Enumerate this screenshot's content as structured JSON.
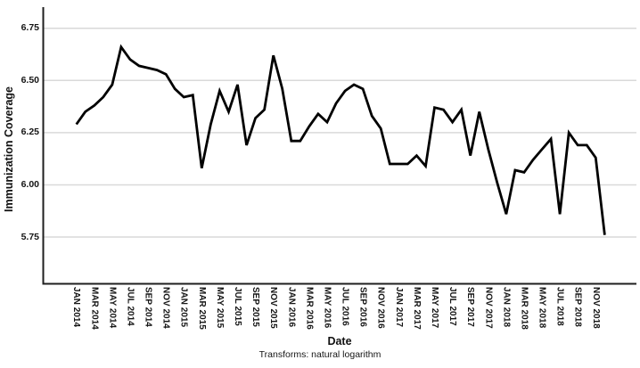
{
  "chart": {
    "y_axis_title": "Immunization Coverage",
    "x_axis_title": "Date",
    "caption": "Transforms: natural logarithm"
  },
  "chart_data": {
    "type": "line",
    "title": "",
    "xlabel": "Date",
    "ylabel": "Immunization Coverage",
    "caption": "Transforms: natural logarithm",
    "grid": "horizontal-only",
    "legend": "none",
    "line_color": "#000000",
    "grid_color": "#d9d9d9",
    "axis_color": "#1f1f1f",
    "ylim": [
      5.53,
      6.85
    ],
    "y_tick_labels": [
      "6.75",
      "6.50",
      "6.25",
      "6.00",
      "5.75"
    ],
    "y_ticks": [
      6.75,
      6.5,
      6.25,
      6.0,
      5.75
    ],
    "x_tick_labels": [
      "JAN 2014",
      "MAR 2014",
      "MAY 2014",
      "JUL 2014",
      "SEP 2014",
      "NOV 2014",
      "JAN 2015",
      "MAR 2015",
      "MAY 2015",
      "JUL 2015",
      "SEP 2015",
      "NOV 2015",
      "JAN 2016",
      "MAR 2016",
      "MAY 2016",
      "JUL 2016",
      "SEP 2016",
      "NOV 2016",
      "JAN 2017",
      "MAR 2017",
      "MAY 2017",
      "JUL 2017",
      "SEP 2017",
      "NOV 2017",
      "JAN 2018",
      "MAR 2018",
      "MAY 2018",
      "JUL 2018",
      "SEP 2018",
      "NOV 2018"
    ],
    "x": [
      "JAN 2014",
      "FEB 2014",
      "MAR 2014",
      "APR 2014",
      "MAY 2014",
      "JUN 2014",
      "JUL 2014",
      "AUG 2014",
      "SEP 2014",
      "OCT 2014",
      "NOV 2014",
      "DEC 2014",
      "JAN 2015",
      "FEB 2015",
      "MAR 2015",
      "APR 2015",
      "MAY 2015",
      "JUN 2015",
      "JUL 2015",
      "AUG 2015",
      "SEP 2015",
      "OCT 2015",
      "NOV 2015",
      "DEC 2015",
      "JAN 2016",
      "FEB 2016",
      "MAR 2016",
      "APR 2016",
      "MAY 2016",
      "JUN 2016",
      "JUL 2016",
      "AUG 2016",
      "SEP 2016",
      "OCT 2016",
      "NOV 2016",
      "DEC 2016",
      "JAN 2017",
      "FEB 2017",
      "MAR 2017",
      "APR 2017",
      "MAY 2017",
      "JUN 2017",
      "JUL 2017",
      "AUG 2017",
      "SEP 2017",
      "OCT 2017",
      "NOV 2017",
      "DEC 2017",
      "JAN 2018",
      "FEB 2018",
      "MAR 2018",
      "APR 2018",
      "MAY 2018",
      "JUN 2018",
      "JUL 2018",
      "AUG 2018",
      "SEP 2018",
      "OCT 2018",
      "NOV 2018",
      "DEC 2018"
    ],
    "series": [
      {
        "name": "Immunization Coverage (natural logarithm)",
        "values": [
          6.29,
          6.35,
          6.38,
          6.42,
          6.48,
          6.66,
          6.6,
          6.57,
          6.56,
          6.55,
          6.53,
          6.46,
          6.42,
          6.43,
          6.08,
          6.29,
          6.45,
          6.35,
          6.48,
          6.19,
          6.32,
          6.36,
          6.62,
          6.46,
          6.21,
          6.21,
          6.28,
          6.34,
          6.3,
          6.39,
          6.45,
          6.48,
          6.46,
          6.33,
          6.27,
          6.1,
          6.1,
          6.1,
          6.14,
          6.09,
          6.37,
          6.36,
          6.3,
          6.36,
          6.14,
          6.35,
          6.17,
          6.01,
          5.86,
          6.07,
          6.06,
          6.12,
          6.17,
          6.22,
          5.86,
          6.25,
          6.19,
          6.19,
          6.13,
          5.76
        ]
      }
    ]
  }
}
